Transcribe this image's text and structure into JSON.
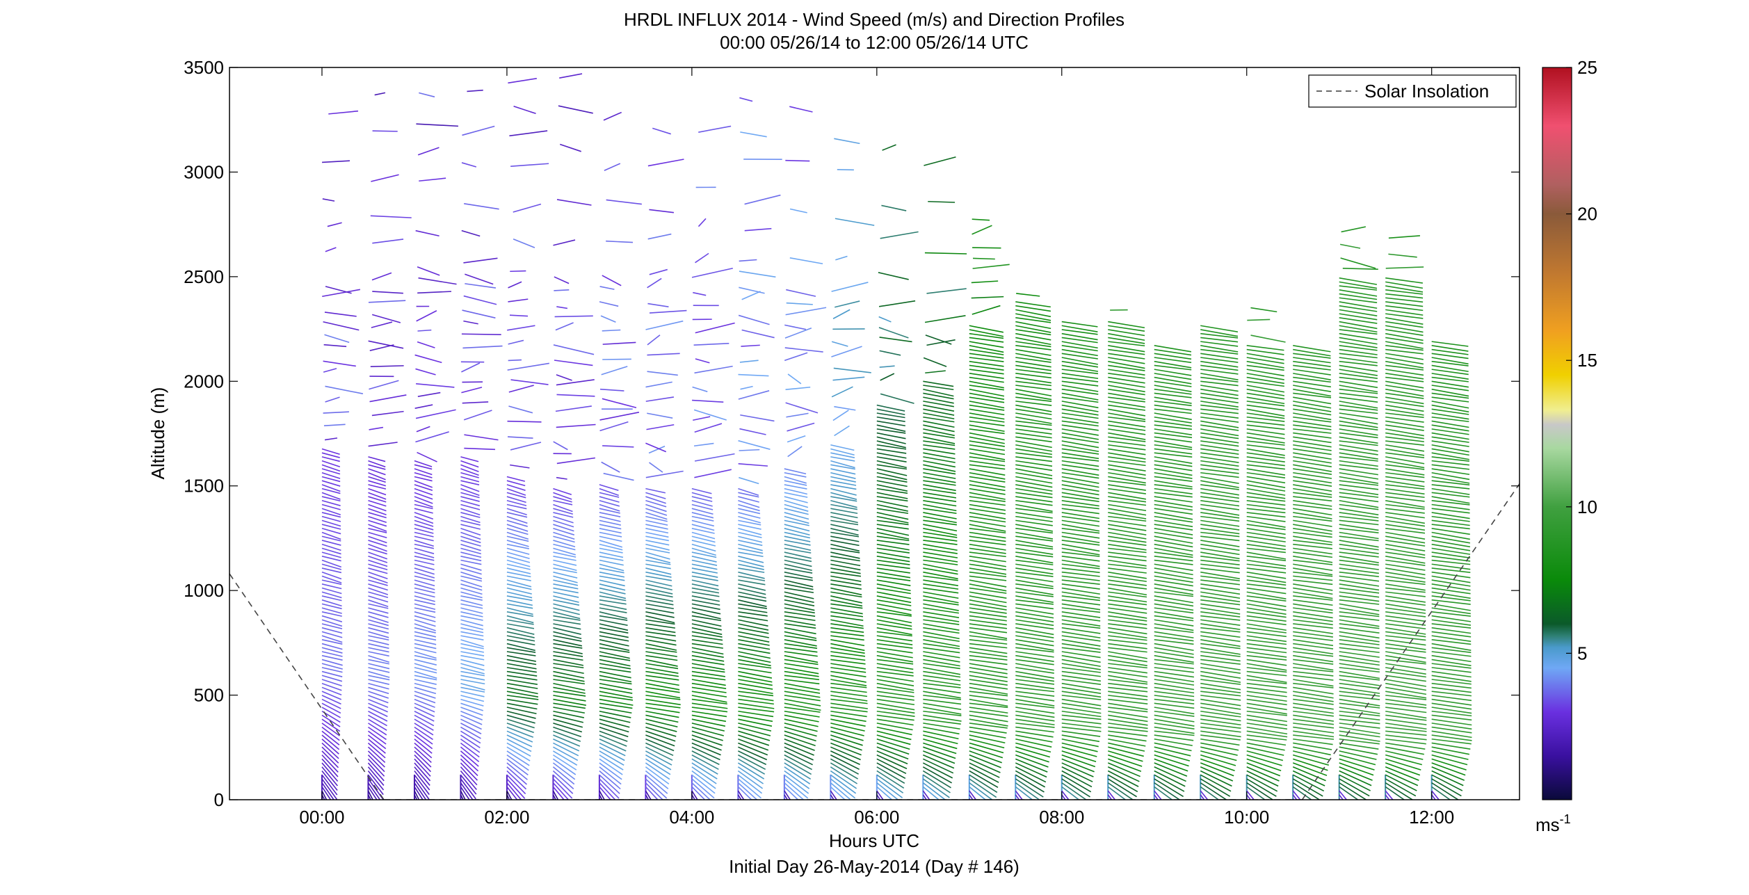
{
  "chart_data": {
    "type": "scatter",
    "title": "HRDL INFLUX 2014 - Wind Speed (m/s) and Direction Profiles",
    "subtitle": "00:00 05/26/14 to 12:00 05/26/14  UTC",
    "xlabel": "Hours UTC",
    "xlabel2": "Initial Day 26-May-2014 (Day # 146)",
    "ylabel": "Altitude (m)",
    "xlim": [
      -1.0,
      12.95
    ],
    "ylim": [
      0,
      3500
    ],
    "x_ticks": [
      0,
      2,
      4,
      6,
      8,
      10,
      12
    ],
    "x_tick_labels": [
      "00:00",
      "02:00",
      "04:00",
      "06:00",
      "08:00",
      "10:00",
      "12:00"
    ],
    "y_ticks": [
      0,
      500,
      1000,
      1500,
      2000,
      2500,
      3000,
      3500
    ],
    "y_tick_labels": [
      "0",
      "500",
      "1000",
      "1500",
      "2000",
      "2500",
      "3000",
      "3500"
    ],
    "grid": false,
    "legend": {
      "placement": "top-right",
      "entries": [
        "Solar Insolation"
      ]
    },
    "colorbar": {
      "label": "ms",
      "label_exponent": "-1",
      "range": [
        0,
        25
      ],
      "tick_values": [
        5,
        10,
        15,
        20,
        25
      ],
      "tick_labels": [
        "5",
        "10",
        "15",
        "20",
        "25"
      ],
      "stops": [
        {
          "v": 0,
          "c": "#0a0a3a"
        },
        {
          "v": 1.5,
          "c": "#3a10a0"
        },
        {
          "v": 3.0,
          "c": "#6a30e0"
        },
        {
          "v": 4.5,
          "c": "#6fa8f5"
        },
        {
          "v": 5.2,
          "c": "#4a9acb"
        },
        {
          "v": 5.6,
          "c": "#2e7f73"
        },
        {
          "v": 6.0,
          "c": "#0b5a2a"
        },
        {
          "v": 7.5,
          "c": "#0a8a0a"
        },
        {
          "v": 10.0,
          "c": "#40a040"
        },
        {
          "v": 12.0,
          "c": "#a8d8a0"
        },
        {
          "v": 12.8,
          "c": "#c8c8c8"
        },
        {
          "v": 13.3,
          "c": "#f0ee90"
        },
        {
          "v": 14.5,
          "c": "#f0d000"
        },
        {
          "v": 16.0,
          "c": "#f0a020"
        },
        {
          "v": 18.0,
          "c": "#c07830"
        },
        {
          "v": 20.0,
          "c": "#8a5a3a"
        },
        {
          "v": 21.0,
          "c": "#b06060"
        },
        {
          "v": 23.0,
          "c": "#f05070"
        },
        {
          "v": 25.0,
          "c": "#b01020"
        }
      ]
    },
    "solar_insolation": [
      {
        "x": -1.0,
        "y": 1080
      },
      {
        "x": 0.67,
        "y": 0
      },
      {
        "x": 10.6,
        "y": 0
      },
      {
        "x": 12.95,
        "y": 1510
      }
    ],
    "profiles": [
      {
        "t": 0.0,
        "top": 1680,
        "upper_top": 2500,
        "cap": 3500,
        "low_speed": 3.5,
        "peak_speed": 3.8,
        "jet_height": 650,
        "upper_speed": 3.0,
        "bottom": 0
      },
      {
        "t": 0.5,
        "top": 1650,
        "upper_top": 2540,
        "cap": 3480,
        "low_speed": 3.3,
        "peak_speed": 4.0,
        "jet_height": 600,
        "upper_speed": 2.8,
        "bottom": 0
      },
      {
        "t": 1.0,
        "top": 1620,
        "upper_top": 2600,
        "cap": 3480,
        "low_speed": 3.0,
        "peak_speed": 4.3,
        "jet_height": 600,
        "upper_speed": 2.9,
        "bottom": 0
      },
      {
        "t": 1.5,
        "top": 1640,
        "upper_top": 2600,
        "cap": 3500,
        "low_speed": 3.1,
        "peak_speed": 4.8,
        "jet_height": 550,
        "upper_speed": 3.0,
        "bottom": 0
      },
      {
        "t": 2.0,
        "top": 1560,
        "upper_top": 2560,
        "cap": 3450,
        "low_speed": 3.8,
        "peak_speed": 6.8,
        "jet_height": 500,
        "upper_speed": 3.0,
        "bottom": 0
      },
      {
        "t": 2.5,
        "top": 1500,
        "upper_top": 2530,
        "cap": 3480,
        "low_speed": 4.2,
        "peak_speed": 7.2,
        "jet_height": 480,
        "upper_speed": 3.1,
        "bottom": 0
      },
      {
        "t": 3.0,
        "top": 1520,
        "upper_top": 2550,
        "cap": 3400,
        "low_speed": 4.5,
        "peak_speed": 7.4,
        "jet_height": 480,
        "upper_speed": 3.3,
        "bottom": 0
      },
      {
        "t": 3.5,
        "top": 1500,
        "upper_top": 2560,
        "cap": 3400,
        "low_speed": 5.2,
        "peak_speed": 7.8,
        "jet_height": 470,
        "upper_speed": 3.5,
        "bottom": 0
      },
      {
        "t": 4.0,
        "top": 1500,
        "upper_top": 2620,
        "cap": 3420,
        "low_speed": 5.8,
        "peak_speed": 8.0,
        "jet_height": 450,
        "upper_speed": 3.5,
        "bottom": 0
      },
      {
        "t": 4.5,
        "top": 1500,
        "upper_top": 2600,
        "cap": 3460,
        "low_speed": 6.2,
        "peak_speed": 8.1,
        "jet_height": 450,
        "upper_speed": 3.7,
        "bottom": 0
      },
      {
        "t": 5.0,
        "top": 1600,
        "upper_top": 2470,
        "cap": 3460,
        "low_speed": 6.5,
        "peak_speed": 8.2,
        "jet_height": 460,
        "upper_speed": 4.0,
        "bottom": 0
      },
      {
        "t": 5.5,
        "top": 1700,
        "upper_top": 2460,
        "cap": 3220,
        "low_speed": 7.0,
        "peak_speed": 8.4,
        "jet_height": 450,
        "upper_speed": 4.6,
        "bottom": 0
      },
      {
        "t": 6.0,
        "top": 1900,
        "upper_top": 2400,
        "cap": 3240,
        "low_speed": 7.4,
        "peak_speed": 8.6,
        "jet_height": 420,
        "upper_speed": 5.8,
        "bottom": 0
      },
      {
        "t": 6.5,
        "top": 2000,
        "upper_top": 2300,
        "cap": 3060,
        "low_speed": 7.8,
        "peak_speed": 8.7,
        "jet_height": 400,
        "upper_speed": 6.5,
        "bottom": 0
      },
      {
        "t": 7.0,
        "top": 2280,
        "upper_top": 2800,
        "cap": 2800,
        "low_speed": 8.0,
        "peak_speed": 8.8,
        "jet_height": 380,
        "upper_speed": 7.5,
        "bottom": 0
      },
      {
        "t": 7.5,
        "top": 2380,
        "upper_top": 2420,
        "cap": 2420,
        "low_speed": 8.3,
        "peak_speed": 8.9,
        "jet_height": 360,
        "upper_speed": 7.8,
        "bottom": 0
      },
      {
        "t": 8.0,
        "top": 2290,
        "upper_top": 2290,
        "cap": 2290,
        "low_speed": 8.5,
        "peak_speed": 9.0,
        "jet_height": 350,
        "upper_speed": 8.0,
        "bottom": 0
      },
      {
        "t": 8.5,
        "top": 2300,
        "upper_top": 2380,
        "cap": 2380,
        "low_speed": 8.6,
        "peak_speed": 9.1,
        "jet_height": 340,
        "upper_speed": 8.2,
        "bottom": 0
      },
      {
        "t": 9.0,
        "top": 2180,
        "upper_top": 2180,
        "cap": 2180,
        "low_speed": 8.7,
        "peak_speed": 9.2,
        "jet_height": 330,
        "upper_speed": 8.3,
        "bottom": 0
      },
      {
        "t": 9.5,
        "top": 2280,
        "upper_top": 2280,
        "cap": 2280,
        "low_speed": 8.8,
        "peak_speed": 9.3,
        "jet_height": 320,
        "upper_speed": 8.4,
        "bottom": 0
      },
      {
        "t": 10.0,
        "top": 2180,
        "upper_top": 2380,
        "cap": 2380,
        "low_speed": 8.9,
        "peak_speed": 9.3,
        "jet_height": 320,
        "upper_speed": 8.4,
        "bottom": 0
      },
      {
        "t": 10.5,
        "top": 2180,
        "upper_top": 2180,
        "cap": 2180,
        "low_speed": 8.9,
        "peak_speed": 9.4,
        "jet_height": 310,
        "upper_speed": 8.5,
        "bottom": 0
      },
      {
        "t": 11.0,
        "top": 2500,
        "upper_top": 2760,
        "cap": 2760,
        "low_speed": 9.0,
        "peak_speed": 9.4,
        "jet_height": 300,
        "upper_speed": 8.5,
        "bottom": 0
      },
      {
        "t": 11.5,
        "top": 2500,
        "upper_top": 2720,
        "cap": 2720,
        "low_speed": 9.0,
        "peak_speed": 9.5,
        "jet_height": 300,
        "upper_speed": 8.4,
        "bottom": 0
      },
      {
        "t": 12.0,
        "top": 2200,
        "upper_top": 2200,
        "cap": 2200,
        "low_speed": 8.8,
        "peak_speed": 9.2,
        "jet_height": 300,
        "upper_speed": 8.2,
        "bottom": 0
      }
    ]
  }
}
